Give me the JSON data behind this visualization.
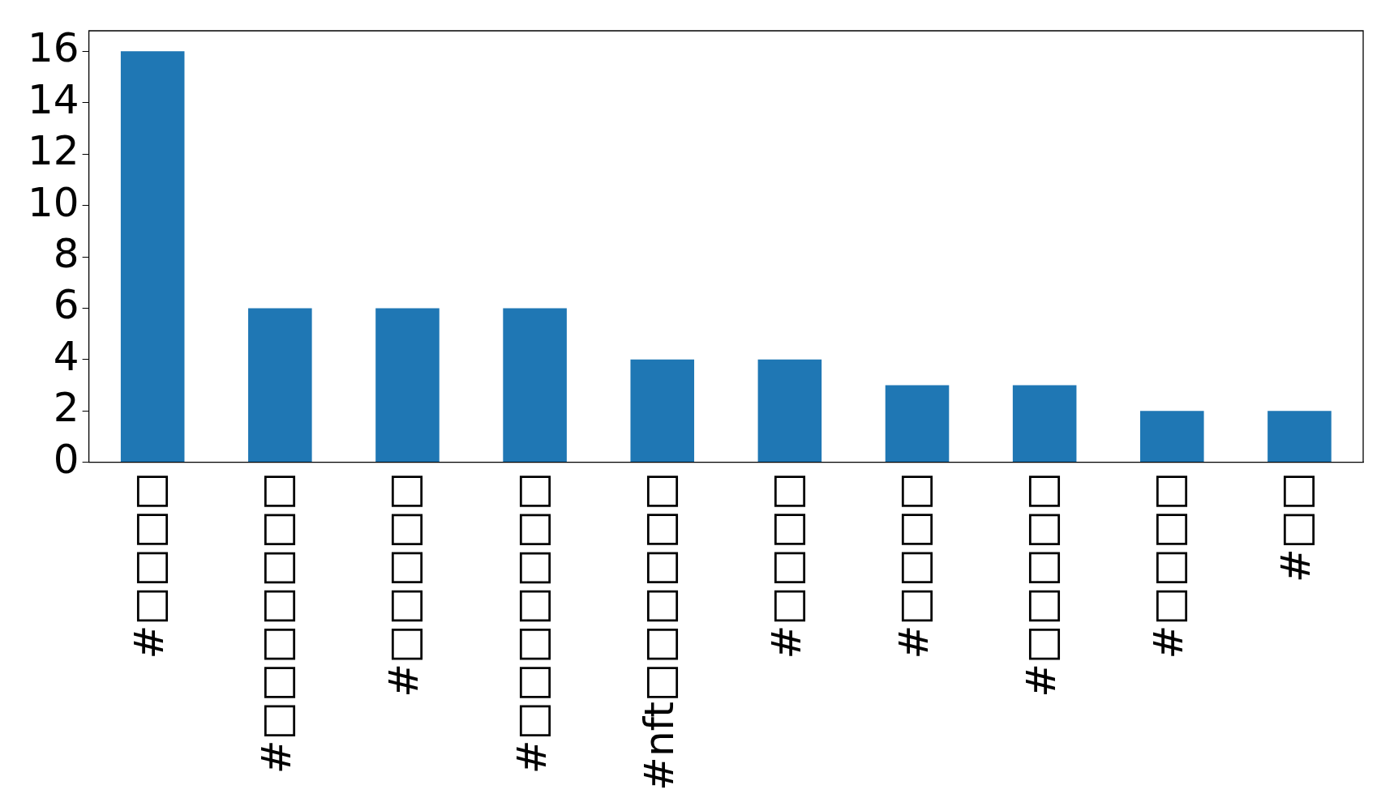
{
  "chart_data": {
    "type": "bar",
    "categories": [
      "#□□□□",
      "#□□□□□□□",
      "#□□□□□",
      "#□□□□□□□",
      "#nft□□□□□□",
      "#□□□□",
      "#□□□□",
      "#□□□□□",
      "#□□□□",
      "#□□"
    ],
    "values": [
      16,
      6,
      6,
      6,
      4,
      4,
      3,
      3,
      2,
      2
    ],
    "color": "#1f77b4",
    "ylim": [
      0,
      16.8
    ],
    "yticks": [
      0,
      2,
      4,
      6,
      8,
      10,
      12,
      14,
      16
    ],
    "grid": false,
    "legend": false
  }
}
